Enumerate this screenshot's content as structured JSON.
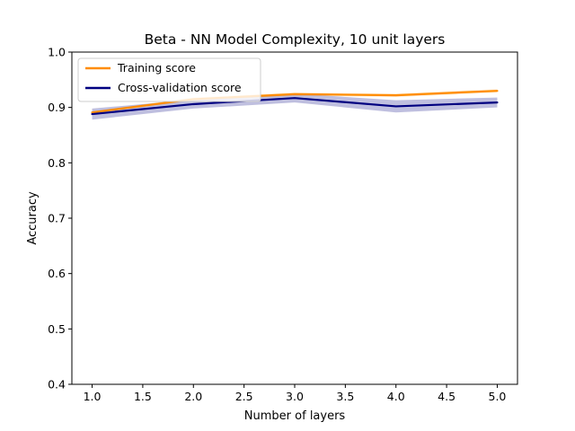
{
  "chart_data": {
    "type": "line",
    "title": "Beta - NN Model Complexity, 10 unit layers",
    "xlabel": "Number of layers",
    "ylabel": "Accuracy",
    "xlim": [
      0.8,
      5.2
    ],
    "ylim": [
      0.4,
      1.0
    ],
    "xticks": [
      1.0,
      1.5,
      2.0,
      2.5,
      3.0,
      3.5,
      4.0,
      4.5,
      5.0
    ],
    "yticks": [
      0.4,
      0.5,
      0.6,
      0.7,
      0.8,
      0.9,
      1.0
    ],
    "xtick_labels": [
      "1.0",
      "1.5",
      "2.0",
      "2.5",
      "3.0",
      "3.5",
      "4.0",
      "4.5",
      "5.0"
    ],
    "ytick_labels": [
      "0.4",
      "0.5",
      "0.6",
      "0.7",
      "0.8",
      "0.9",
      "1.0"
    ],
    "x": [
      1,
      2,
      3,
      4,
      5
    ],
    "series": [
      {
        "name": "Training score",
        "color": "#ff8c00",
        "values": [
          0.891,
          0.915,
          0.924,
          0.922,
          0.93
        ],
        "band_lower": [
          0.889,
          0.912,
          0.921,
          0.919,
          0.927
        ],
        "band_upper": [
          0.893,
          0.918,
          0.927,
          0.925,
          0.933
        ]
      },
      {
        "name": "Cross-validation score",
        "color": "#000080",
        "values": [
          0.888,
          0.906,
          0.917,
          0.902,
          0.909
        ],
        "band_lower": [
          0.878,
          0.898,
          0.909,
          0.891,
          0.9
        ],
        "band_upper": [
          0.898,
          0.914,
          0.925,
          0.913,
          0.918
        ]
      }
    ],
    "grid": false,
    "legend_position": "top-left"
  }
}
